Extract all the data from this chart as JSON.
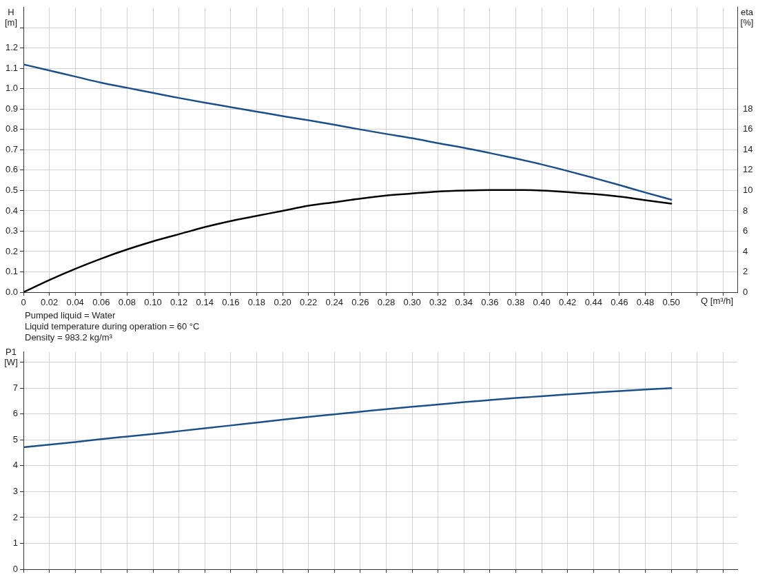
{
  "chart_data": [
    {
      "type": "line",
      "xlabel": "Q [m³/h]",
      "ylabel": "H [m]",
      "y2label": "eta [%]",
      "grid": true,
      "x": [
        0,
        0.02,
        0.04,
        0.06,
        0.08,
        0.1,
        0.12,
        0.14,
        0.16,
        0.18,
        0.2,
        0.22,
        0.24,
        0.26,
        0.28,
        0.3,
        0.32,
        0.34,
        0.36,
        0.38,
        0.4,
        0.42,
        0.44,
        0.46,
        0.48,
        0.5
      ],
      "xlim": [
        0,
        0.551
      ],
      "xticks": [
        0,
        0.02,
        0.04,
        0.06,
        0.08,
        {
          "value": 0.1,
          "label": "0.10"
        },
        0.12,
        0.14,
        0.16,
        0.18,
        {
          "value": 0.2,
          "label": "0.20"
        },
        0.22,
        0.24,
        0.26,
        0.28,
        {
          "value": 0.3,
          "label": "0.30"
        },
        0.32,
        0.34,
        0.36,
        0.38,
        {
          "value": 0.4,
          "label": "0.40"
        },
        0.42,
        0.44,
        0.46,
        0.48,
        {
          "value": 0.5,
          "label": "0.50"
        },
        {
          "value": 0.52,
          "label": null
        },
        {
          "value": 0.54,
          "label": null
        }
      ],
      "ylim": [
        0,
        1.4
      ],
      "yticks": [
        {
          "value": 0,
          "label": "0.0"
        },
        0.1,
        0.2,
        0.3,
        0.4,
        0.5,
        0.6,
        0.7,
        0.8,
        0.9,
        {
          "value": 1,
          "label": "1.0"
        },
        1.1,
        1.2,
        {
          "value": 1.3,
          "label": null
        }
      ],
      "y2lim": [
        0,
        28
      ],
      "y2ticks": [
        0,
        2,
        4,
        6,
        8,
        10,
        12,
        14,
        16,
        18
      ],
      "series": [
        {
          "color": "#1a4f8a",
          "values": [
            1.12,
            1.09,
            1.06,
            1.03,
            1.005,
            0.98,
            0.955,
            0.932,
            0.91,
            0.888,
            0.866,
            0.845,
            0.823,
            0.8,
            0.778,
            0.757,
            0.733,
            0.71,
            0.684,
            0.657,
            0.628,
            0.596,
            0.562,
            0.527,
            0.49,
            0.455
          ]
        },
        {
          "color": "#000000",
          "axis": "y2",
          "values": [
            0,
            1.2,
            2.3,
            3.3,
            4.2,
            5.0,
            5.7,
            6.4,
            7.0,
            7.5,
            8.0,
            8.5,
            8.85,
            9.2,
            9.5,
            9.7,
            9.9,
            10.0,
            10.05,
            10.05,
            10.0,
            9.85,
            9.65,
            9.4,
            9.05,
            8.7
          ]
        }
      ],
      "annotations": [
        "Pumped liquid = Water",
        "Liquid temperature during operation = 60 °C",
        "Density = 983.2 kg/m³"
      ]
    },
    {
      "type": "line",
      "ylabel": "P1 [W]",
      "grid": true,
      "tick_labels": "y",
      "x": [
        0,
        0.02,
        0.04,
        0.06,
        0.08,
        0.1,
        0.12,
        0.14,
        0.16,
        0.18,
        0.2,
        0.22,
        0.24,
        0.26,
        0.28,
        0.3,
        0.32,
        0.34,
        0.36,
        0.38,
        0.4,
        0.42,
        0.44,
        0.46,
        0.48,
        0.5
      ],
      "xlim": [
        0,
        0.551
      ],
      "xticks": [
        0,
        0.02,
        0.04,
        0.06,
        0.08,
        0.1,
        0.12,
        0.14,
        0.16,
        0.18,
        0.2,
        0.22,
        0.24,
        0.26,
        0.28,
        0.3,
        0.32,
        0.34,
        0.36,
        0.38,
        0.4,
        0.42,
        0.44,
        0.46,
        0.48,
        0.5,
        0.52,
        0.54
      ],
      "ylim": [
        0,
        8.4
      ],
      "yticks": [
        0,
        1,
        2,
        3,
        4,
        5,
        6,
        7,
        {
          "value": 8,
          "label": null
        }
      ],
      "series": [
        {
          "color": "#1a4f8a",
          "values": [
            4.72,
            4.82,
            4.92,
            5.03,
            5.13,
            5.23,
            5.34,
            5.45,
            5.56,
            5.67,
            5.78,
            5.89,
            5.99,
            6.09,
            6.19,
            6.28,
            6.37,
            6.46,
            6.54,
            6.62,
            6.69,
            6.76,
            6.83,
            6.89,
            6.95,
            7.0
          ]
        }
      ]
    }
  ]
}
